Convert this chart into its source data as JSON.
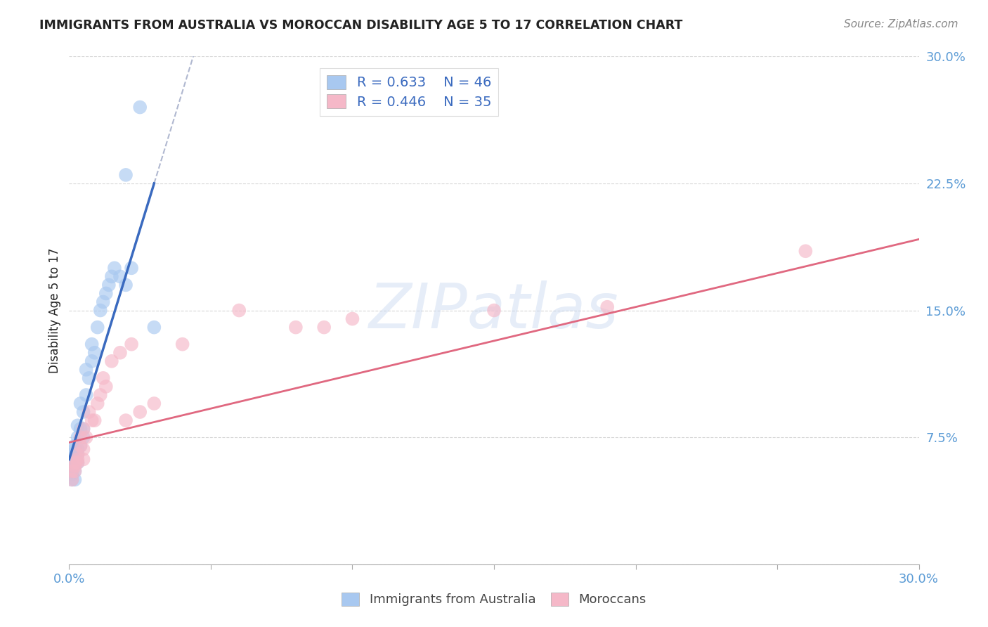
{
  "title": "IMMIGRANTS FROM AUSTRALIA VS MOROCCAN DISABILITY AGE 5 TO 17 CORRELATION CHART",
  "source": "Source: ZipAtlas.com",
  "ylabel": "Disability Age 5 to 17",
  "xlim": [
    0.0,
    0.3
  ],
  "ylim": [
    0.0,
    0.3
  ],
  "background_color": "#ffffff",
  "watermark_text": "ZIPatlas",
  "blue_scatter_color": "#a8c8f0",
  "pink_scatter_color": "#f5b8c8",
  "blue_line_color": "#3a6abf",
  "pink_line_color": "#e06880",
  "blue_dashed_color": "#b0b8d0",
  "axis_tick_color": "#5b9bd5",
  "grid_color": "#cccccc",
  "title_color": "#222222",
  "source_color": "#888888",
  "ylabel_color": "#222222",
  "legend_text_color": "#3a6abf",
  "australia_x": [
    0.001,
    0.001,
    0.001,
    0.001,
    0.001,
    0.001,
    0.001,
    0.001,
    0.001,
    0.002,
    0.002,
    0.002,
    0.002,
    0.002,
    0.002,
    0.002,
    0.003,
    0.003,
    0.003,
    0.003,
    0.003,
    0.004,
    0.004,
    0.004,
    0.005,
    0.005,
    0.005,
    0.006,
    0.006,
    0.007,
    0.008,
    0.008,
    0.009,
    0.01,
    0.011,
    0.012,
    0.013,
    0.014,
    0.015,
    0.016,
    0.018,
    0.02,
    0.022,
    0.03,
    0.02,
    0.025
  ],
  "australia_y": [
    0.05,
    0.053,
    0.055,
    0.057,
    0.058,
    0.06,
    0.06,
    0.062,
    0.065,
    0.05,
    0.055,
    0.06,
    0.063,
    0.065,
    0.068,
    0.07,
    0.06,
    0.065,
    0.068,
    0.075,
    0.082,
    0.07,
    0.08,
    0.095,
    0.075,
    0.08,
    0.09,
    0.1,
    0.115,
    0.11,
    0.12,
    0.13,
    0.125,
    0.14,
    0.15,
    0.155,
    0.16,
    0.165,
    0.17,
    0.175,
    0.17,
    0.165,
    0.175,
    0.14,
    0.23,
    0.27
  ],
  "morocco_x": [
    0.001,
    0.001,
    0.002,
    0.002,
    0.002,
    0.003,
    0.003,
    0.003,
    0.004,
    0.004,
    0.005,
    0.005,
    0.005,
    0.006,
    0.007,
    0.008,
    0.009,
    0.01,
    0.011,
    0.012,
    0.013,
    0.015,
    0.018,
    0.02,
    0.022,
    0.025,
    0.03,
    0.04,
    0.06,
    0.08,
    0.09,
    0.1,
    0.15,
    0.19,
    0.26
  ],
  "morocco_y": [
    0.05,
    0.055,
    0.055,
    0.058,
    0.06,
    0.06,
    0.062,
    0.065,
    0.07,
    0.075,
    0.062,
    0.068,
    0.08,
    0.075,
    0.09,
    0.085,
    0.085,
    0.095,
    0.1,
    0.11,
    0.105,
    0.12,
    0.125,
    0.085,
    0.13,
    0.09,
    0.095,
    0.13,
    0.15,
    0.14,
    0.14,
    0.145,
    0.15,
    0.152,
    0.185
  ],
  "blue_line_x0": 0.0,
  "blue_line_y0": 0.062,
  "blue_line_x1": 0.03,
  "blue_line_y1": 0.225,
  "pink_line_x0": 0.0,
  "pink_line_y0": 0.072,
  "pink_line_x1": 0.3,
  "pink_line_y1": 0.192
}
